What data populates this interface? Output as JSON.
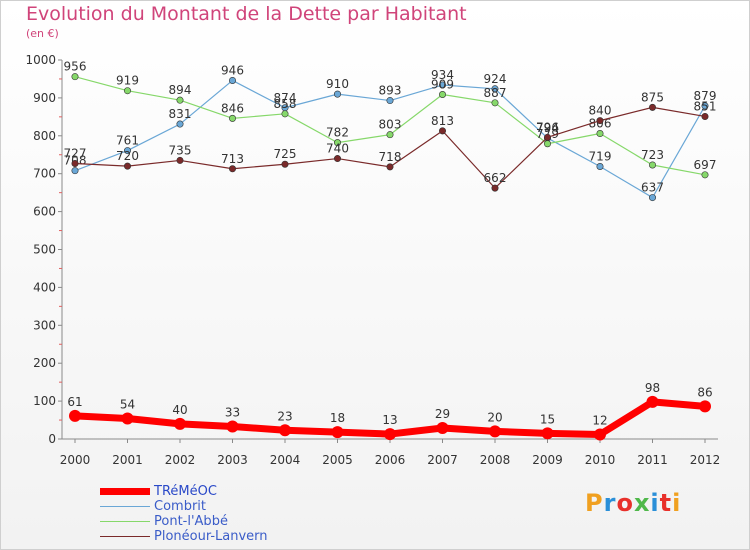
{
  "title": "Evolution du Montant de la Dette par Habitant",
  "subtitle": "(en €)",
  "logo_text": "Proxiti",
  "logo_colors": [
    "#f0a020",
    "#2a8fd8",
    "#e8302a",
    "#4fb84a",
    "#2a8fd8",
    "#e8302a",
    "#f0a020"
  ],
  "chart_data": {
    "type": "line",
    "x": [
      "2000",
      "2001",
      "2002",
      "2003",
      "2004",
      "2005",
      "2006",
      "2007",
      "2008",
      "2009",
      "2010",
      "2011",
      "2012"
    ],
    "ylim": [
      0,
      1000
    ],
    "yticks": [
      0,
      100,
      200,
      300,
      400,
      500,
      600,
      700,
      800,
      900,
      1000
    ],
    "grid": false,
    "legend_position": "bottom-left",
    "series": [
      {
        "name": "TRéMéOC",
        "color": "#ff0000",
        "labels_above": true,
        "values": [
          61,
          54,
          40,
          33,
          23,
          18,
          13,
          29,
          20,
          15,
          12,
          98,
          86
        ]
      },
      {
        "name": "Combrit",
        "color": "#6aa7d6",
        "labels_above": true,
        "values": [
          708,
          761,
          831,
          946,
          874,
          910,
          893,
          934,
          924,
          794,
          719,
          637,
          879
        ]
      },
      {
        "name": "Pont-l'Abbé",
        "color": "#86d86a",
        "labels_above": true,
        "values": [
          956,
          919,
          894,
          846,
          858,
          782,
          803,
          909,
          887,
          779,
          806,
          723,
          697
        ]
      },
      {
        "name": "Plonéour-Lanvern",
        "color": "#7a2a2a",
        "labels_above": true,
        "values": [
          727,
          720,
          735,
          713,
          725,
          740,
          718,
          813,
          662,
          796,
          840,
          875,
          851
        ]
      }
    ]
  }
}
